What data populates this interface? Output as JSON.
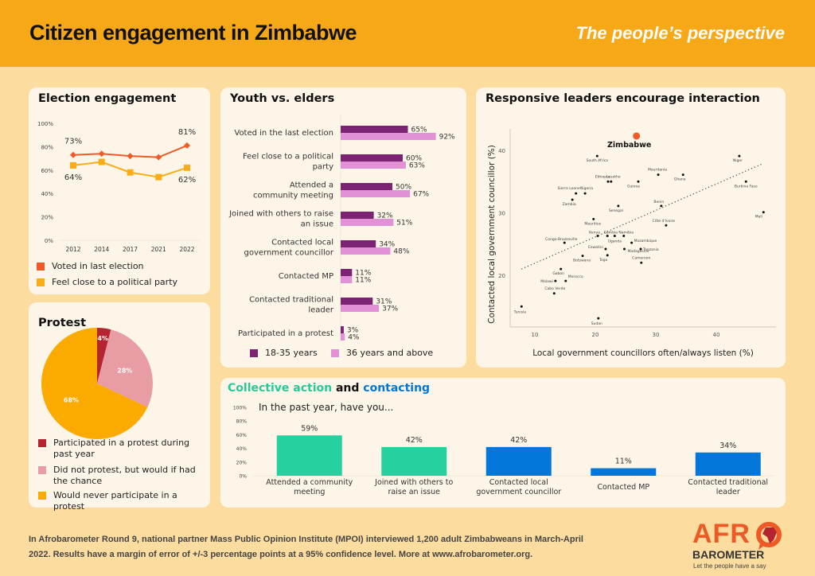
{
  "header": {
    "title": "Citizen engagement in Zimbabwe",
    "subtitle": "The people’s perspective"
  },
  "colors": {
    "header_bg": "#f7a816",
    "page_bg": "#fddc9f",
    "panel_bg": "#fdf5e7",
    "voted": "#f05a28",
    "party": "#fbad18",
    "protest_participated": "#b5252f",
    "protest_would": "#e89ca3",
    "protest_never": "#fbaa00",
    "youth": "#7d2373",
    "elders": "#e291d6",
    "collective": "#26d19f",
    "contacting": "#0277d9",
    "zimbabwe_point": "#f05a28"
  },
  "footer": {
    "text": "In Afrobarometer Round 9, national partner Mass Public Opinion Institute (MPOI) interviewed 1,200 adult Zimbabweans in March-April 2022. Results have a margin of error of +/-3 percentage points at a 95% confidence level. More at www.afrobarometer.org."
  },
  "logo": {
    "top": "AFR",
    "middle": "BAROMETER",
    "tagline": "Let the people have a say"
  },
  "chart_data": [
    {
      "id": "election",
      "type": "line",
      "title": "Election engagement",
      "categories": [
        "2012",
        "2014",
        "2017",
        "2021",
        "2022"
      ],
      "yticks": [
        "0%",
        "20%",
        "40%",
        "60%",
        "80%",
        "100%"
      ],
      "ylim": [
        0,
        100
      ],
      "grid": false,
      "series": [
        {
          "name": "Voted in last election",
          "values": [
            73,
            74,
            72,
            71,
            81
          ],
          "labels": [
            "73%",
            "",
            "",
            "",
            "81%"
          ],
          "marker": "diamond"
        },
        {
          "name": "Feel close to a political party",
          "values": [
            64,
            67,
            58,
            54,
            62
          ],
          "labels": [
            "64%",
            "",
            "",
            "",
            "62%"
          ],
          "marker": "square"
        }
      ],
      "legend": "bottom"
    },
    {
      "id": "protest",
      "type": "pie",
      "title": "Protest",
      "slices": [
        {
          "name": "Participated in a protest during past year",
          "value": 4,
          "label": "4%"
        },
        {
          "name": "Did not protest, but would if had the chance",
          "value": 28,
          "label": "28%"
        },
        {
          "name": "Would never participate in a protest",
          "value": 68,
          "label": "68%"
        }
      ],
      "legend": "bottom"
    },
    {
      "id": "youth",
      "type": "bar",
      "orientation": "horizontal",
      "title": "Youth vs. elders",
      "categories": [
        "Voted in the last election",
        "Feel close to a political party",
        "Attended a community meeting",
        "Joined with others to raise an issue",
        "Contacted local government councillor",
        "Contacted MP",
        "Contacted traditional leader",
        "Participated in a protest"
      ],
      "category_lines": [
        [
          "Voted in the last election"
        ],
        [
          "Feel close to a political",
          "party"
        ],
        [
          "Attended a",
          "community meeting"
        ],
        [
          "Joined with others to raise",
          "an issue"
        ],
        [
          "Contacted local",
          "government councillor"
        ],
        [
          "Contacted MP"
        ],
        [
          "Contacted traditional",
          "leader"
        ],
        [
          "Participated in a protest"
        ]
      ],
      "series": [
        {
          "name": "18-35 years",
          "values": [
            65,
            60,
            50,
            32,
            34,
            11,
            31,
            3
          ]
        },
        {
          "name": "36 years and above",
          "values": [
            92,
            63,
            67,
            51,
            48,
            11,
            37,
            4
          ]
        }
      ],
      "xlim": [
        0,
        100
      ],
      "legend": "bottom"
    },
    {
      "id": "scatter",
      "type": "scatter",
      "title": "Responsive leaders encourage interaction",
      "xlabel": "Local government councillors often/always listen (%)",
      "ylabel": "Contacted local government councillor (%)",
      "xticks": [
        10,
        20,
        30,
        40
      ],
      "yticks": [
        20,
        30,
        40
      ],
      "xlim": [
        4,
        50
      ],
      "ylim": [
        11,
        45
      ],
      "trendline": {
        "x": [
          7.8,
          47.5
        ],
        "y": [
          21.0,
          37.8
        ],
        "style": "dotted"
      },
      "highlight": "Zimbabwe",
      "points": [
        {
          "name": "Zimbabwe",
          "x": 26.8,
          "y": 42.3
        },
        {
          "name": "South Africa",
          "x": 20.3,
          "y": 39.1
        },
        {
          "name": "Niger",
          "x": 43.8,
          "y": 39.1
        },
        {
          "name": "Mauritania",
          "x": 30.4,
          "y": 36.1
        },
        {
          "name": "Ghana",
          "x": 34.5,
          "y": 36.1
        },
        {
          "name": "Ethiopia",
          "x": 22.1,
          "y": 35.0
        },
        {
          "name": "Lesotho",
          "x": 22.6,
          "y": 35.0
        },
        {
          "name": "Guinea",
          "x": 27.1,
          "y": 35.0
        },
        {
          "name": "Burkina Faso",
          "x": 44.9,
          "y": 35.0
        },
        {
          "name": "Sierra Leone",
          "x": 16.8,
          "y": 33.1
        },
        {
          "name": "Nigeria",
          "x": 18.3,
          "y": 33.1
        },
        {
          "name": "Zambia",
          "x": 16.2,
          "y": 32.1
        },
        {
          "name": "Senegal",
          "x": 23.8,
          "y": 31.1
        },
        {
          "name": "Benin",
          "x": 30.9,
          "y": 31.1
        },
        {
          "name": "Mali",
          "x": 47.8,
          "y": 30.1
        },
        {
          "name": "Mauritius",
          "x": 19.7,
          "y": 29.0
        },
        {
          "name": "Côte d'Ivoire",
          "x": 31.7,
          "y": 28.0
        },
        {
          "name": "Kenya",
          "x": 20.4,
          "y": 26.3
        },
        {
          "name": "Gambia",
          "x": 22.0,
          "y": 26.3
        },
        {
          "name": "Namibia",
          "x": 24.7,
          "y": 26.3
        },
        {
          "name": "Uganda",
          "x": 23.2,
          "y": 26.3
        },
        {
          "name": "Congo-Brazzaville",
          "x": 14.9,
          "y": 25.2
        },
        {
          "name": "Mozambique",
          "x": 26.0,
          "y": 25.2
        },
        {
          "name": "Eswatini",
          "x": 21.7,
          "y": 24.2
        },
        {
          "name": "Tanzania",
          "x": 27.5,
          "y": 24.2
        },
        {
          "name": "Madagascar",
          "x": 24.8,
          "y": 24.2
        },
        {
          "name": "Botswana",
          "x": 17.9,
          "y": 23.1
        },
        {
          "name": "Togo",
          "x": 22.0,
          "y": 23.2
        },
        {
          "name": "Cameroon",
          "x": 27.6,
          "y": 22.0
        },
        {
          "name": "Gabon",
          "x": 14.3,
          "y": 21.0
        },
        {
          "name": "Malawi",
          "x": 13.4,
          "y": 19.1
        },
        {
          "name": "Morocco",
          "x": 15.1,
          "y": 19.1
        },
        {
          "name": "Cabo Verde",
          "x": 13.2,
          "y": 17.1
        },
        {
          "name": "Tunisia",
          "x": 7.8,
          "y": 15.0
        },
        {
          "name": "Sudan",
          "x": 20.5,
          "y": 13.1
        }
      ]
    },
    {
      "id": "collective",
      "type": "bar",
      "orientation": "vertical",
      "title_parts": [
        {
          "text": "Collective action",
          "color_key": "collective"
        },
        {
          "text": " and ",
          "color_key": "dark"
        },
        {
          "text": "contacting",
          "color_key": "contacting"
        }
      ],
      "subtitle": "In the past year, have you...",
      "yticks": [
        "0%",
        "20%",
        "40%",
        "60%",
        "80%",
        "100%"
      ],
      "ylim": [
        0,
        100
      ],
      "categories": [
        "Attended a community meeting",
        "Joined with others to raise an issue",
        "Contacted local government councillor",
        "Contacted MP",
        "Contacted traditional leader"
      ],
      "category_lines": [
        [
          "Attended a community",
          "meeting"
        ],
        [
          "Joined with others to",
          "raise an issue"
        ],
        [
          "Contacted local",
          "government councillor"
        ],
        [
          "Contacted MP"
        ],
        [
          "Contacted traditional",
          "leader"
        ]
      ],
      "values": [
        59,
        42,
        42,
        11,
        34
      ],
      "labels": [
        "59%",
        "42%",
        "42%",
        "11%",
        "34%"
      ],
      "groups": [
        "collective",
        "collective",
        "contacting",
        "contacting",
        "contacting"
      ]
    }
  ]
}
